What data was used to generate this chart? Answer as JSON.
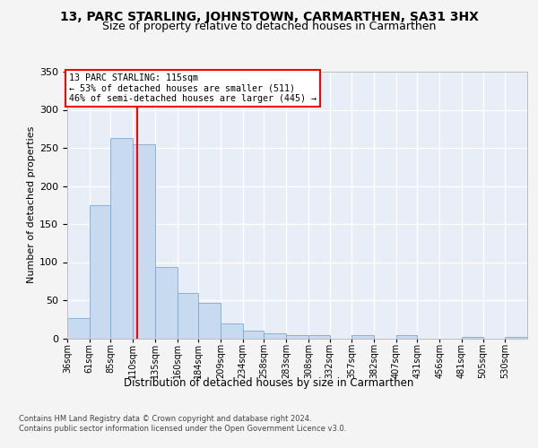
{
  "title1": "13, PARC STARLING, JOHNSTOWN, CARMARTHEN, SA31 3HX",
  "title2": "Size of property relative to detached houses in Carmarthen",
  "xlabel": "Distribution of detached houses by size in Carmarthen",
  "ylabel": "Number of detached properties",
  "annotation_line1": "13 PARC STARLING: 115sqm",
  "annotation_line2": "← 53% of detached houses are smaller (511)",
  "annotation_line3": "46% of semi-detached houses are larger (445) →",
  "footer1": "Contains HM Land Registry data © Crown copyright and database right 2024.",
  "footer2": "Contains public sector information licensed under the Open Government Licence v3.0.",
  "bar_color": "#c8daf0",
  "bar_edge_color": "#7baad4",
  "red_line_x": 115,
  "categories": [
    "36sqm",
    "61sqm",
    "85sqm",
    "110sqm",
    "135sqm",
    "160sqm",
    "184sqm",
    "209sqm",
    "234sqm",
    "258sqm",
    "283sqm",
    "308sqm",
    "332sqm",
    "357sqm",
    "382sqm",
    "407sqm",
    "431sqm",
    "456sqm",
    "481sqm",
    "505sqm",
    "530sqm"
  ],
  "bin_starts": [
    36,
    61,
    85,
    110,
    135,
    160,
    184,
    209,
    234,
    258,
    283,
    308,
    332,
    357,
    382,
    407,
    431,
    456,
    481,
    505,
    530
  ],
  "values": [
    27,
    175,
    263,
    255,
    93,
    60,
    46,
    19,
    10,
    7,
    4,
    4,
    0,
    4,
    0,
    4,
    0,
    0,
    2,
    0,
    2
  ],
  "ylim": [
    0,
    350
  ],
  "yticks": [
    0,
    50,
    100,
    150,
    200,
    250,
    300,
    350
  ],
  "plot_bg_color": "#e8eef8",
  "grid_color": "#ffffff",
  "fig_bg_color": "#f4f4f4",
  "title1_fontsize": 10,
  "title2_fontsize": 9,
  "footer_fontsize": 6.0,
  "ylabel_fontsize": 8,
  "xlabel_fontsize": 8.5,
  "tick_fontsize": 7,
  "ytick_fontsize": 8
}
